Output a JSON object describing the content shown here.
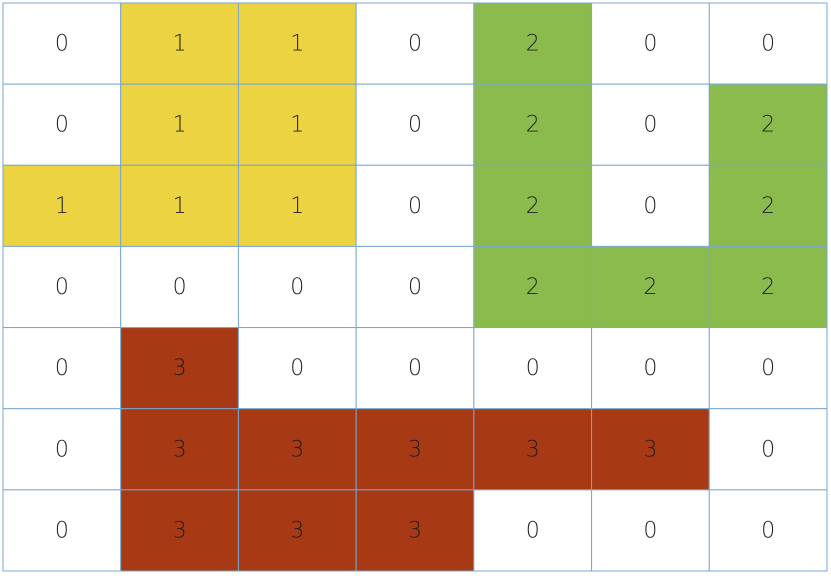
{
  "grid": {
    "rows": [
      [
        0,
        1,
        1,
        0,
        2,
        0,
        0
      ],
      [
        0,
        1,
        1,
        0,
        2,
        0,
        2
      ],
      [
        1,
        1,
        1,
        0,
        2,
        0,
        2
      ],
      [
        0,
        0,
        0,
        0,
        2,
        2,
        2
      ],
      [
        0,
        3,
        0,
        0,
        0,
        0,
        0
      ],
      [
        0,
        3,
        3,
        3,
        3,
        3,
        0
      ],
      [
        0,
        3,
        3,
        3,
        0,
        0,
        0
      ]
    ],
    "palette": [
      "#ffffff",
      "#ebd342",
      "#8bbb4c",
      "#a73915"
    ]
  }
}
